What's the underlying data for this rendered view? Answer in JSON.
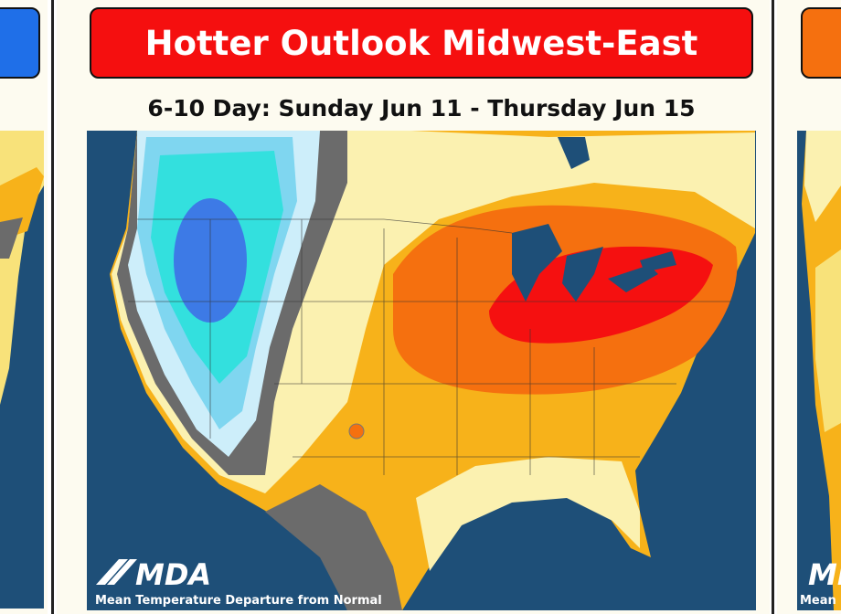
{
  "header": {
    "title": "Hotter Outlook Midwest-East",
    "subtitle": "6-10 Day: Sunday Jun 11 - Thursday Jun 15"
  },
  "map": {
    "logo": "MDA",
    "caption": "Mean Temperature Departure from Normal"
  },
  "next_slide": {
    "logo": "MDA",
    "caption": "Mean"
  }
}
